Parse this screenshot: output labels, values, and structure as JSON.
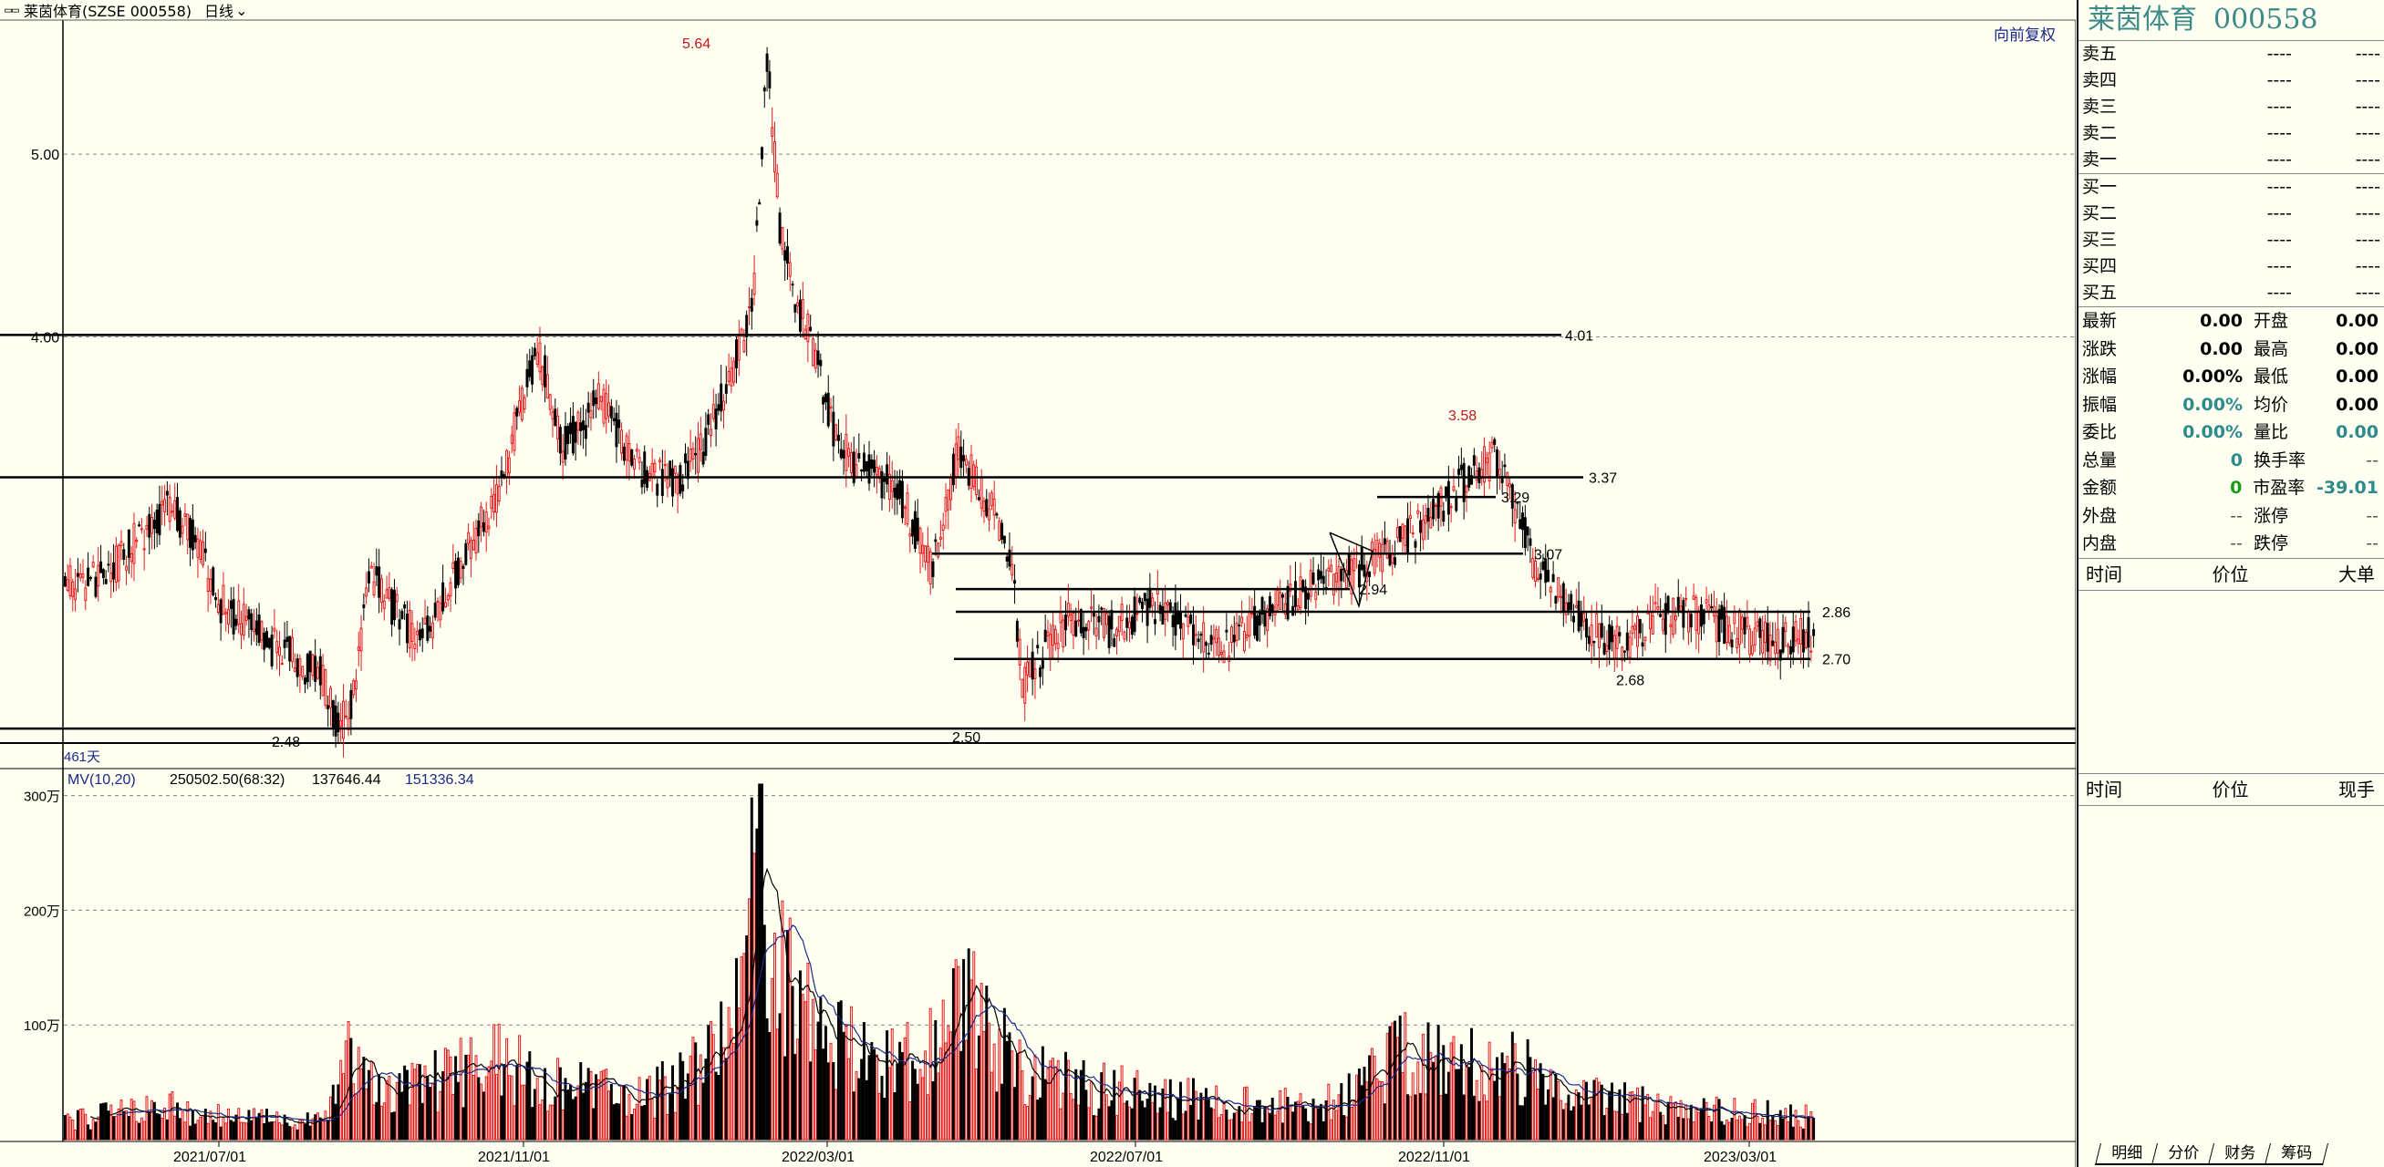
{
  "header": {
    "stock_title": "莱茵体育(SZSE 000558)",
    "period": "日线",
    "restore_label": "向前复权"
  },
  "chart_data": {
    "type": "candlestick",
    "price_axis": {
      "ticks": [
        {
          "label": "5.00",
          "value": 5.0
        },
        {
          "label": "4.00",
          "value": 4.0
        }
      ],
      "ylim": [
        2.45,
        5.85
      ]
    },
    "volume_axis": {
      "ticks": [
        {
          "label": "300万",
          "value": 300
        },
        {
          "label": "200万",
          "value": 200
        },
        {
          "label": "100万",
          "value": 100
        }
      ],
      "ylim": [
        0,
        310
      ]
    },
    "date_labels": [
      "2021/07/01",
      "2021/11/01",
      "2022/03/01",
      "2022/07/01",
      "2022/11/01",
      "2023/03/01"
    ],
    "bar_count_label": "461天",
    "annotations": [
      {
        "text": "5.64",
        "value": 5.64,
        "color": "#c0181c"
      },
      {
        "text": "3.58",
        "value": 3.58,
        "color": "#c0181c"
      },
      {
        "text": "2.48",
        "value": 2.48,
        "color": "#000000"
      },
      {
        "text": "2.50",
        "value": 2.5,
        "color": "#000000"
      },
      {
        "text": "2.68",
        "value": 2.68,
        "color": "#000000"
      },
      {
        "text": "4.01",
        "value": 4.01,
        "color": "#000000"
      },
      {
        "text": "3.37",
        "value": 3.37,
        "color": "#000000"
      },
      {
        "text": "3.29",
        "value": 3.29,
        "color": "#000000"
      },
      {
        "text": "3.07",
        "value": 3.07,
        "color": "#000000"
      },
      {
        "text": "2.94",
        "value": 2.94,
        "color": "#000000"
      },
      {
        "text": "2.86",
        "value": 2.86,
        "color": "#000000"
      },
      {
        "text": "2.70",
        "value": 2.7,
        "color": "#000000"
      }
    ],
    "series": {
      "price_waypoints": [
        [
          0,
          2.95
        ],
        [
          15,
          2.98
        ],
        [
          40,
          3.25
        ],
        [
          50,
          3.15
        ],
        [
          60,
          2.9
        ],
        [
          80,
          2.75
        ],
        [
          100,
          2.65
        ],
        [
          107,
          2.48
        ],
        [
          112,
          2.55
        ],
        [
          120,
          3.0
        ],
        [
          130,
          2.85
        ],
        [
          140,
          2.75
        ],
        [
          150,
          2.95
        ],
        [
          170,
          3.3
        ],
        [
          185,
          3.95
        ],
        [
          195,
          3.5
        ],
        [
          210,
          3.7
        ],
        [
          225,
          3.4
        ],
        [
          240,
          3.35
        ],
        [
          250,
          3.5
        ],
        [
          265,
          3.95
        ],
        [
          270,
          4.3
        ],
        [
          275,
          5.6
        ],
        [
          280,
          4.6
        ],
        [
          285,
          4.2
        ],
        [
          292,
          4.0
        ],
        [
          300,
          3.6
        ],
        [
          310,
          3.4
        ],
        [
          325,
          3.35
        ],
        [
          340,
          3.0
        ],
        [
          350,
          3.5
        ],
        [
          360,
          3.3
        ],
        [
          370,
          3.1
        ],
        [
          375,
          2.6
        ],
        [
          385,
          2.75
        ],
        [
          395,
          2.85
        ],
        [
          410,
          2.8
        ],
        [
          425,
          2.88
        ],
        [
          440,
          2.82
        ],
        [
          455,
          2.75
        ],
        [
          470,
          2.85
        ],
        [
          490,
          2.95
        ],
        [
          505,
          3.0
        ],
        [
          520,
          3.1
        ],
        [
          535,
          3.2
        ],
        [
          548,
          3.35
        ],
        [
          560,
          3.45
        ],
        [
          575,
          3.05
        ],
        [
          590,
          2.85
        ],
        [
          610,
          2.75
        ],
        [
          625,
          2.85
        ],
        [
          640,
          2.85
        ],
        [
          655,
          2.8
        ],
        [
          670,
          2.75
        ],
        [
          685,
          2.78
        ]
      ],
      "volume_waypoints": [
        [
          0,
          15
        ],
        [
          40,
          30
        ],
        [
          60,
          20
        ],
        [
          100,
          15
        ],
        [
          112,
          80
        ],
        [
          125,
          40
        ],
        [
          150,
          55
        ],
        [
          170,
          70
        ],
        [
          185,
          50
        ],
        [
          200,
          45
        ],
        [
          230,
          40
        ],
        [
          255,
          70
        ],
        [
          265,
          110
        ],
        [
          270,
          300
        ],
        [
          275,
          190
        ],
        [
          285,
          120
        ],
        [
          300,
          90
        ],
        [
          320,
          60
        ],
        [
          340,
          80
        ],
        [
          350,
          140
        ],
        [
          360,
          90
        ],
        [
          370,
          70
        ],
        [
          380,
          60
        ],
        [
          400,
          45
        ],
        [
          420,
          40
        ],
        [
          440,
          35
        ],
        [
          470,
          30
        ],
        [
          490,
          28
        ],
        [
          505,
          40
        ],
        [
          520,
          70
        ],
        [
          535,
          80
        ],
        [
          548,
          60
        ],
        [
          560,
          75
        ],
        [
          575,
          55
        ],
        [
          600,
          35
        ],
        [
          640,
          25
        ],
        [
          685,
          20
        ]
      ],
      "ma_labels": {
        "name": "MV(10,20)",
        "v1": "250502.50(68:32)",
        "v2": "137646.44",
        "v3": "151336.34"
      }
    }
  },
  "orderbook": {
    "sell": [
      {
        "label": "卖五",
        "price": "----",
        "vol": "----"
      },
      {
        "label": "卖四",
        "price": "----",
        "vol": "----"
      },
      {
        "label": "卖三",
        "price": "----",
        "vol": "----"
      },
      {
        "label": "卖二",
        "price": "----",
        "vol": "----"
      },
      {
        "label": "卖一",
        "price": "----",
        "vol": "----"
      }
    ],
    "buy": [
      {
        "label": "买一",
        "price": "----",
        "vol": "----"
      },
      {
        "label": "买二",
        "price": "----",
        "vol": "----"
      },
      {
        "label": "买三",
        "price": "----",
        "vol": "----"
      },
      {
        "label": "买四",
        "price": "----",
        "vol": "----"
      },
      {
        "label": "买五",
        "price": "----",
        "vol": "----"
      }
    ]
  },
  "quote": {
    "name": "莱茵体育",
    "code": "000558",
    "stats": [
      {
        "k1": "最新",
        "v1": "0.00",
        "c1": "",
        "k2": "开盘",
        "v2": "0.00",
        "c2": ""
      },
      {
        "k1": "涨跌",
        "v1": "0.00",
        "c1": "",
        "k2": "最高",
        "v2": "0.00",
        "c2": ""
      },
      {
        "k1": "涨幅",
        "v1": "0.00%",
        "c1": "",
        "k2": "最低",
        "v2": "0.00",
        "c2": ""
      },
      {
        "k1": "振幅",
        "v1": "0.00%",
        "c1": "teal",
        "k2": "均价",
        "v2": "0.00",
        "c2": ""
      },
      {
        "k1": "委比",
        "v1": "0.00%",
        "c1": "teal",
        "k2": "量比",
        "v2": "0.00",
        "c2": "teal"
      },
      {
        "k1": "总量",
        "v1": "0",
        "c1": "teal",
        "k2": "换手率",
        "v2": "--",
        "c2": "dash"
      },
      {
        "k1": "金额",
        "v1": "0",
        "c1": "green",
        "k2": "市盈率",
        "v2": "-39.01",
        "c2": "teal"
      },
      {
        "k1": "外盘",
        "v1": "--",
        "c1": "dash",
        "k2": "涨停",
        "v2": "--",
        "c2": "dash"
      },
      {
        "k1": "内盘",
        "v1": "--",
        "c1": "dash",
        "k2": "跌停",
        "v2": "--",
        "c2": "dash"
      }
    ]
  },
  "trades_header": {
    "time": "时间",
    "price": "价位",
    "big": "大单"
  },
  "ticks_header": {
    "time": "时间",
    "price": "价位",
    "now": "现手"
  },
  "tabs": [
    "明细",
    "分价",
    "财务",
    "筹码"
  ],
  "colors": {
    "up": "#e8191c",
    "down": "#000000",
    "bg": "#fffff2",
    "ma1": "#000000",
    "ma2": "#1a2a8a"
  }
}
